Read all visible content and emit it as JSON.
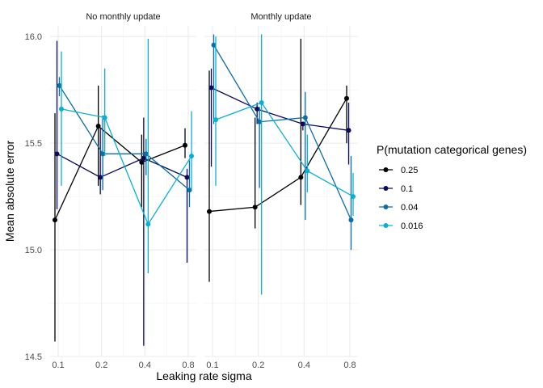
{
  "chart_data": {
    "type": "line",
    "xlabel": "Leaking rate sigma",
    "ylabel": "Mean absolute error",
    "x_scale": "log2",
    "x_ticks": [
      0.1,
      0.2,
      0.4,
      0.8
    ],
    "x_tick_labels": [
      "0.1",
      "0.2",
      "0.4",
      "0.8"
    ],
    "ylim": [
      14.5,
      16.05
    ],
    "y_ticks": [
      14.5,
      15.0,
      15.5,
      16.0
    ],
    "y_tick_labels": [
      "14.5",
      "15.0",
      "15.5",
      "16.0"
    ],
    "grid": true,
    "legend_title": "P(mutation categorical genes)",
    "legend_position": "right",
    "series": [
      {
        "name": "0.25",
        "color": "#000000"
      },
      {
        "name": "0.1",
        "color": "#0a0a5e"
      },
      {
        "name": "0.04",
        "color": "#0a6ea8"
      },
      {
        "name": "0.016",
        "color": "#08b0d6"
      }
    ],
    "facets": [
      {
        "title": "No monthly update",
        "series": [
          {
            "name": "0.25",
            "points": [
              {
                "x": 0.1,
                "y": 15.14,
                "ymin": 14.57,
                "ymax": 15.64
              },
              {
                "x": 0.2,
                "y": 15.58,
                "ymin": 15.3,
                "ymax": 15.77
              },
              {
                "x": 0.4,
                "y": 15.41,
                "ymin": 15.2,
                "ymax": 15.54
              },
              {
                "x": 0.8,
                "y": 15.49,
                "ymin": 15.43,
                "ymax": 15.57
              }
            ]
          },
          {
            "name": "0.1",
            "points": [
              {
                "x": 0.1,
                "y": 15.45,
                "ymin": 15.19,
                "ymax": 15.98
              },
              {
                "x": 0.2,
                "y": 15.34,
                "ymin": 15.26,
                "ymax": 15.57
              },
              {
                "x": 0.4,
                "y": 15.43,
                "ymin": 14.55,
                "ymax": 15.62
              },
              {
                "x": 0.8,
                "y": 15.34,
                "ymin": 14.94,
                "ymax": 15.38
              }
            ]
          },
          {
            "name": "0.04",
            "points": [
              {
                "x": 0.1,
                "y": 15.77,
                "ymin": 15.72,
                "ymax": 15.81
              },
              {
                "x": 0.2,
                "y": 15.45,
                "ymin": 15.28,
                "ymax": 15.63
              },
              {
                "x": 0.4,
                "y": 15.45,
                "ymin": 15.35,
                "ymax": 15.52
              },
              {
                "x": 0.8,
                "y": 15.28,
                "ymin": 15.2,
                "ymax": 15.42
              }
            ]
          },
          {
            "name": "0.016",
            "points": [
              {
                "x": 0.1,
                "y": 15.66,
                "ymin": 15.3,
                "ymax": 15.93
              },
              {
                "x": 0.2,
                "y": 15.62,
                "ymin": 15.44,
                "ymax": 15.85
              },
              {
                "x": 0.4,
                "y": 15.12,
                "ymin": 14.89,
                "ymax": 15.99
              },
              {
                "x": 0.8,
                "y": 15.44,
                "ymin": 15.28,
                "ymax": 15.65
              }
            ]
          }
        ]
      },
      {
        "title": "Monthly update",
        "series": [
          {
            "name": "0.25",
            "points": [
              {
                "x": 0.1,
                "y": 15.18,
                "ymin": 14.85,
                "ymax": 15.84
              },
              {
                "x": 0.2,
                "y": 15.2,
                "ymin": 15.1,
                "ymax": 15.62
              },
              {
                "x": 0.4,
                "y": 15.34,
                "ymin": 15.21,
                "ymax": 15.99
              },
              {
                "x": 0.8,
                "y": 15.71,
                "ymin": 15.5,
                "ymax": 15.77
              }
            ]
          },
          {
            "name": "0.1",
            "points": [
              {
                "x": 0.1,
                "y": 15.76,
                "ymin": 15.39,
                "ymax": 15.85
              },
              {
                "x": 0.2,
                "y": 15.66,
                "ymin": 15.59,
                "ymax": 15.69
              },
              {
                "x": 0.4,
                "y": 15.59,
                "ymin": 15.56,
                "ymax": 15.6
              },
              {
                "x": 0.8,
                "y": 15.56,
                "ymin": 15.4,
                "ymax": 15.69
              }
            ]
          },
          {
            "name": "0.04",
            "points": [
              {
                "x": 0.1,
                "y": 15.96,
                "ymin": 15.59,
                "ymax": 16.01
              },
              {
                "x": 0.2,
                "y": 15.6,
                "ymin": 15.29,
                "ymax": 15.67
              },
              {
                "x": 0.4,
                "y": 15.62,
                "ymin": 15.14,
                "ymax": 15.74
              },
              {
                "x": 0.8,
                "y": 15.14,
                "ymin": 15.0,
                "ymax": 15.44
              }
            ]
          },
          {
            "name": "0.016",
            "points": [
              {
                "x": 0.1,
                "y": 15.61,
                "ymin": 15.3,
                "ymax": 16.0
              },
              {
                "x": 0.2,
                "y": 15.69,
                "ymin": 14.79,
                "ymax": 16.01
              },
              {
                "x": 0.4,
                "y": 15.37,
                "ymin": 15.27,
                "ymax": 15.54
              },
              {
                "x": 0.8,
                "y": 15.25,
                "ymin": 15.16,
                "ymax": 15.36
              }
            ]
          }
        ]
      }
    ]
  }
}
